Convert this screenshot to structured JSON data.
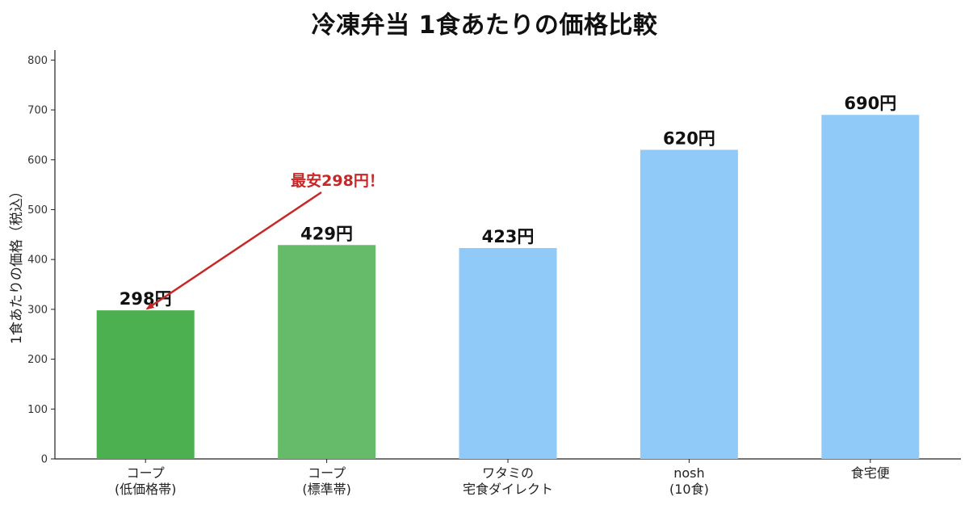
{
  "chart_data": {
    "type": "bar",
    "title": "冷凍弁当 1食あたりの価格比較",
    "xlabel": "",
    "ylabel": "1食あたりの価格（税込）",
    "ylim": [
      0,
      820
    ],
    "yticks": [
      0,
      100,
      200,
      300,
      400,
      500,
      600,
      700,
      800
    ],
    "categories": [
      [
        "コープ",
        "(低価格帯)"
      ],
      [
        "コープ",
        "(標準帯)"
      ],
      [
        "ワタミの",
        "宅食ダイレクト"
      ],
      [
        "nosh",
        "(10食)"
      ],
      [
        "食宅便"
      ]
    ],
    "values": [
      298,
      429,
      423,
      620,
      690
    ],
    "value_labels": [
      "298円",
      "429円",
      "423円",
      "620円",
      "690円"
    ],
    "bar_colors": [
      "#4caf50",
      "#66bb6a",
      "#90caf9",
      "#90caf9",
      "#90caf9"
    ],
    "annotation": {
      "text": "最安298円！",
      "color": "#c62828",
      "target_category": 0,
      "target_value": 298
    },
    "grid": false
  }
}
